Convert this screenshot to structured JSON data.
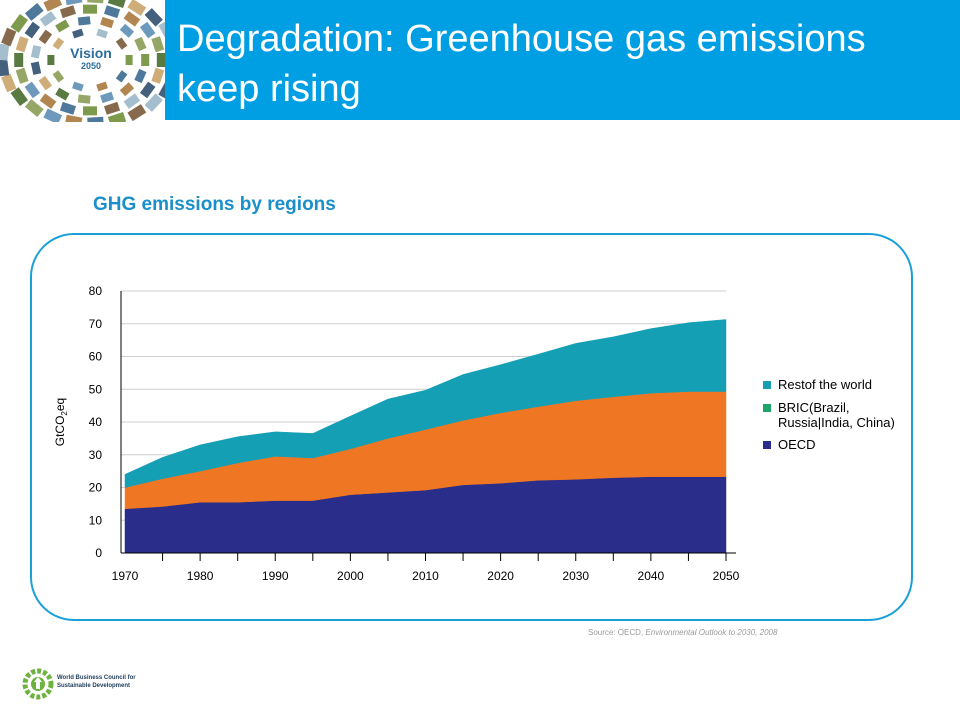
{
  "header": {
    "title": "Degradation: Greenhouse gas emissions keep rising",
    "logo_word": "Vision",
    "logo_year": "2050",
    "bar_color": "#009ee2"
  },
  "subtitle": "GHG emissions by regions",
  "source": {
    "prefix": "Source: OECD, ",
    "italic": "Environmental Outlook to 2030, 2008"
  },
  "footer": {
    "org_line1": "World Business Council for",
    "org_line2": "Sustainable Development"
  },
  "chart_data": {
    "type": "area",
    "stacked": true,
    "x": [
      1970,
      1975,
      1980,
      1985,
      1990,
      1995,
      2000,
      2005,
      2010,
      2015,
      2020,
      2025,
      2030,
      2035,
      2040,
      2045,
      2050
    ],
    "xticks": [
      1970,
      1980,
      1990,
      2000,
      2010,
      2020,
      2030,
      2040,
      2050
    ],
    "xlim": [
      1970,
      2050
    ],
    "ylim": [
      0,
      80
    ],
    "yticks": [
      0,
      10,
      20,
      30,
      40,
      50,
      60,
      70,
      80
    ],
    "ylabel": "GtCO2eq",
    "ylabel_main": "GtCO",
    "ylabel_sub": "2",
    "ylabel_tail": "eq",
    "grid": true,
    "legend_position": "right",
    "series": [
      {
        "name": "OECD",
        "color": "#2a2d8a",
        "values": [
          13.5,
          14.2,
          15.5,
          15.5,
          16.0,
          16.0,
          17.8,
          18.5,
          19.2,
          20.8,
          21.3,
          22.2,
          22.5,
          23.0,
          23.3,
          23.3,
          23.3
        ]
      },
      {
        "name": "BRIC(Brazil, Russia|India, China)",
        "color": "#ef7622",
        "values": [
          6.5,
          8.5,
          9.5,
          12.0,
          13.5,
          13.0,
          14.0,
          16.5,
          18.5,
          19.7,
          21.5,
          22.5,
          24.0,
          24.7,
          25.5,
          26.0,
          26.0
        ]
      },
      {
        "name": "Restof the world",
        "color": "#149fb5",
        "values": [
          4.0,
          6.5,
          8.0,
          8.0,
          7.5,
          7.5,
          10.0,
          12.0,
          12.0,
          14.0,
          14.7,
          16.0,
          17.5,
          18.3,
          19.7,
          21.0,
          22.0
        ]
      }
    ],
    "legend_order": [
      {
        "label": "Restof the world",
        "color": "#149fb5"
      },
      {
        "label": "BRIC(Brazil,\nRussia|India, China)",
        "color": "#1aa56b"
      },
      {
        "label": "OECD",
        "color": "#2a2d8a"
      }
    ]
  }
}
